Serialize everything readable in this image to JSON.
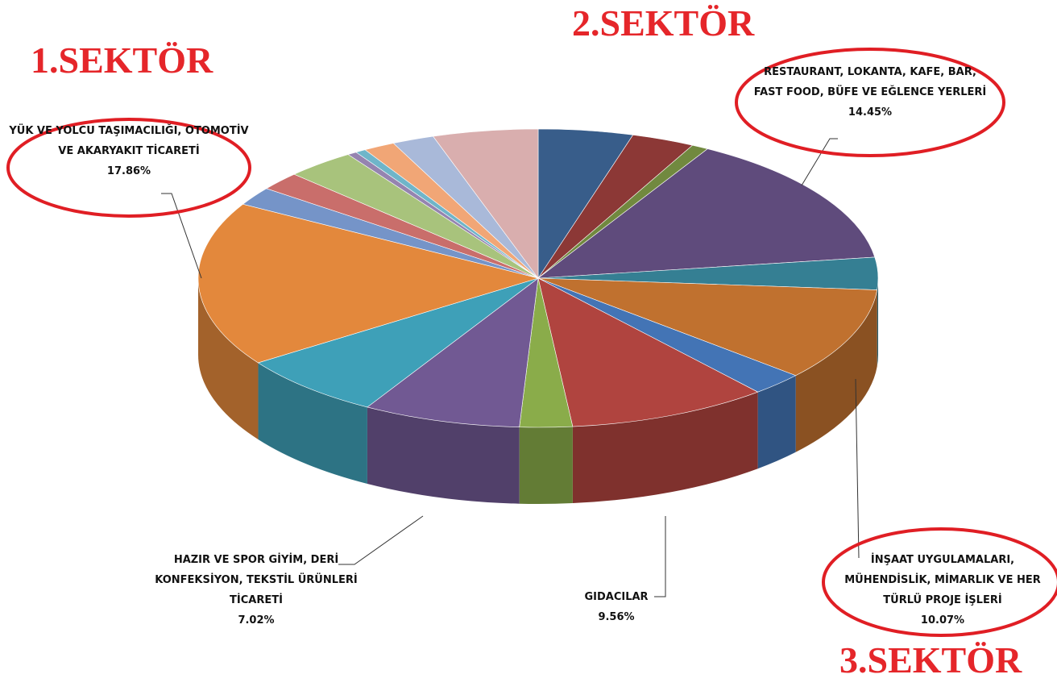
{
  "chart_data": {
    "type": "pie3d",
    "annotations": [
      "1.SEKTÖR",
      "2.SEKTÖR",
      "3.SEKTÖR"
    ],
    "categories": [
      null,
      null,
      null,
      "RESTAURANT, LOKANTA, KAFE, BAR, FAST FOOD, BÜFE VE EĞLENCE YERLERİ",
      null,
      "İNŞAAT UYGULAMALARI, MÜHENDİSLİK, MİMARLIK VE HER TÜRLÜ PROJE İŞLERİ",
      null,
      "GIDACILAR",
      null,
      null,
      "HAZIR VE SPOR GİYİM, DERİ KONFEKSİYON, TEKSTİL ÜRÜNLERİ TİCARETİ",
      "YÜK VE YOLCU TAŞIMACILIĞI, OTOMOTİV VE AKARYAKIT TİCARETİ",
      null,
      null,
      null,
      null,
      null,
      null,
      null,
      null
    ],
    "values": [
      4.5,
      3,
      0.8,
      14.45,
      3.5,
      10.07,
      2.5,
      9.56,
      2.5,
      7.5,
      7.02,
      17.86,
      2,
      2,
      3.3,
      0.44,
      0.5,
      1.5,
      2,
      5
    ],
    "value_labels": [
      null,
      null,
      null,
      "14.45%",
      null,
      "10.07%",
      null,
      "9.56%",
      null,
      null,
      "7.02%",
      "17.86%",
      null,
      null,
      null,
      null,
      null,
      null,
      null,
      null
    ],
    "colors": [
      "#385d8a",
      "#8c3836",
      "#71893f",
      "#5f4b7c",
      "#357f93",
      "#c0712f",
      "#4374b5",
      "#b0443f",
      "#8aac4a",
      "#715993",
      "#3ea0b8",
      "#e3883c",
      "#7594c8",
      "#c96e6b",
      "#a8c37c",
      "#9584b0",
      "#6fb5c9",
      "#f1a676",
      "#a9b9d9",
      "#d9aeae"
    ]
  }
}
